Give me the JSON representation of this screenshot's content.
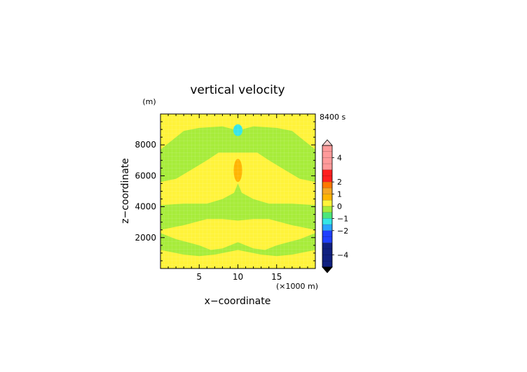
{
  "chart_data": {
    "type": "heatmap",
    "title": "vertical velocity",
    "time_label": "8400 s",
    "xlabel": "x−coordinate",
    "x_unit": "(×1000 m)",
    "ylabel": "z−coordinate",
    "y_unit": "(m)",
    "xlim": [
      0,
      20
    ],
    "ylim": [
      0,
      10000
    ],
    "x_ticks": [
      "5",
      "10",
      "15"
    ],
    "y_ticks": [
      "2000",
      "4000",
      "6000",
      "8000"
    ],
    "colorbar": {
      "labels": [
        "4",
        "2",
        "1",
        "0",
        "−1",
        "−2",
        "−4"
      ],
      "levels": [
        {
          "min": 3,
          "max": 5,
          "color": "#ff9a9a"
        },
        {
          "min": 2,
          "max": 3,
          "color": "#ff2020"
        },
        {
          "min": 1.5,
          "max": 2,
          "color": "#ff7800"
        },
        {
          "min": 1,
          "max": 1.5,
          "color": "#f5a623"
        },
        {
          "min": 0.5,
          "max": 1,
          "color": "#ffb400"
        },
        {
          "min": 0,
          "max": 0.5,
          "color": "#fff33a"
        },
        {
          "min": -0.5,
          "max": 0,
          "color": "#a7ec3a"
        },
        {
          "min": -1,
          "max": -0.5,
          "color": "#4ce67a"
        },
        {
          "min": -1.5,
          "max": -1,
          "color": "#35e6e6"
        },
        {
          "min": -2,
          "max": -1.5,
          "color": "#2aa4ff"
        },
        {
          "min": -3,
          "max": -2,
          "color": "#1f3fff"
        },
        {
          "min": -5,
          "max": -3,
          "color": "#102080"
        }
      ]
    },
    "field": {
      "background_value": 0.25,
      "regions": [
        {
          "value": -0.25,
          "note": "green band upper",
          "shape": "polygon",
          "points": [
            [
              0,
              7700
            ],
            [
              1.5,
              8300
            ],
            [
              3,
              8900
            ],
            [
              5,
              9100
            ],
            [
              8,
              9200
            ],
            [
              9.5,
              9000
            ],
            [
              10.5,
              9000
            ],
            [
              12,
              9200
            ],
            [
              15,
              9100
            ],
            [
              17,
              8900
            ],
            [
              18.5,
              8300
            ],
            [
              20,
              7700
            ],
            [
              20,
              5600
            ],
            [
              18,
              5800
            ],
            [
              16,
              6400
            ],
            [
              14,
              7000
            ],
            [
              12.5,
              7500
            ],
            [
              11,
              7500
            ],
            [
              9,
              7500
            ],
            [
              7.5,
              7500
            ],
            [
              6,
              7000
            ],
            [
              4,
              6400
            ],
            [
              2,
              5800
            ],
            [
              0,
              5600
            ]
          ]
        },
        {
          "value": -0.25,
          "note": "green middle band",
          "shape": "polygon",
          "points": [
            [
              0,
              4100
            ],
            [
              3,
              4200
            ],
            [
              6,
              4200
            ],
            [
              8,
              4500
            ],
            [
              9.5,
              4900
            ],
            [
              10,
              5500
            ],
            [
              10.5,
              4900
            ],
            [
              12,
              4500
            ],
            [
              14,
              4200
            ],
            [
              17,
              4200
            ],
            [
              20,
              4100
            ],
            [
              20,
              2500
            ],
            [
              17,
              2800
            ],
            [
              14,
              3200
            ],
            [
              12,
              3200
            ],
            [
              10,
              3100
            ],
            [
              8,
              3200
            ],
            [
              6,
              3200
            ],
            [
              3,
              2800
            ],
            [
              0,
              2500
            ]
          ]
        },
        {
          "value": -0.25,
          "note": "green lower band",
          "shape": "polygon",
          "points": [
            [
              0,
              2300
            ],
            [
              2,
              1900
            ],
            [
              3.5,
              1700
            ],
            [
              5,
              1500
            ],
            [
              6.5,
              1200
            ],
            [
              8,
              1300
            ],
            [
              10,
              1700
            ],
            [
              12,
              1300
            ],
            [
              13.5,
              1200
            ],
            [
              15,
              1500
            ],
            [
              16.5,
              1700
            ],
            [
              18,
              1900
            ],
            [
              20,
              2300
            ],
            [
              20,
              1200
            ],
            [
              17,
              900
            ],
            [
              15,
              800
            ],
            [
              13,
              900
            ],
            [
              11,
              1100
            ],
            [
              10,
              1200
            ],
            [
              9,
              1100
            ],
            [
              7,
              900
            ],
            [
              5,
              800
            ],
            [
              3,
              900
            ],
            [
              0,
              1200
            ]
          ]
        },
        {
          "value": 0.25,
          "note": "yellow lens",
          "shape": "ellipse",
          "cx": 10,
          "cy": 2600,
          "rx": 2.2,
          "ry": 500
        },
        {
          "value": 0.75,
          "note": "updraft core",
          "shape": "ellipse",
          "cx": 10,
          "cy": 6350,
          "rx": 0.55,
          "ry": 750
        },
        {
          "value": -1.25,
          "note": "downdraft cell",
          "shape": "ellipse",
          "cx": 10,
          "cy": 8950,
          "rx": 0.6,
          "ry": 380
        }
      ]
    }
  }
}
